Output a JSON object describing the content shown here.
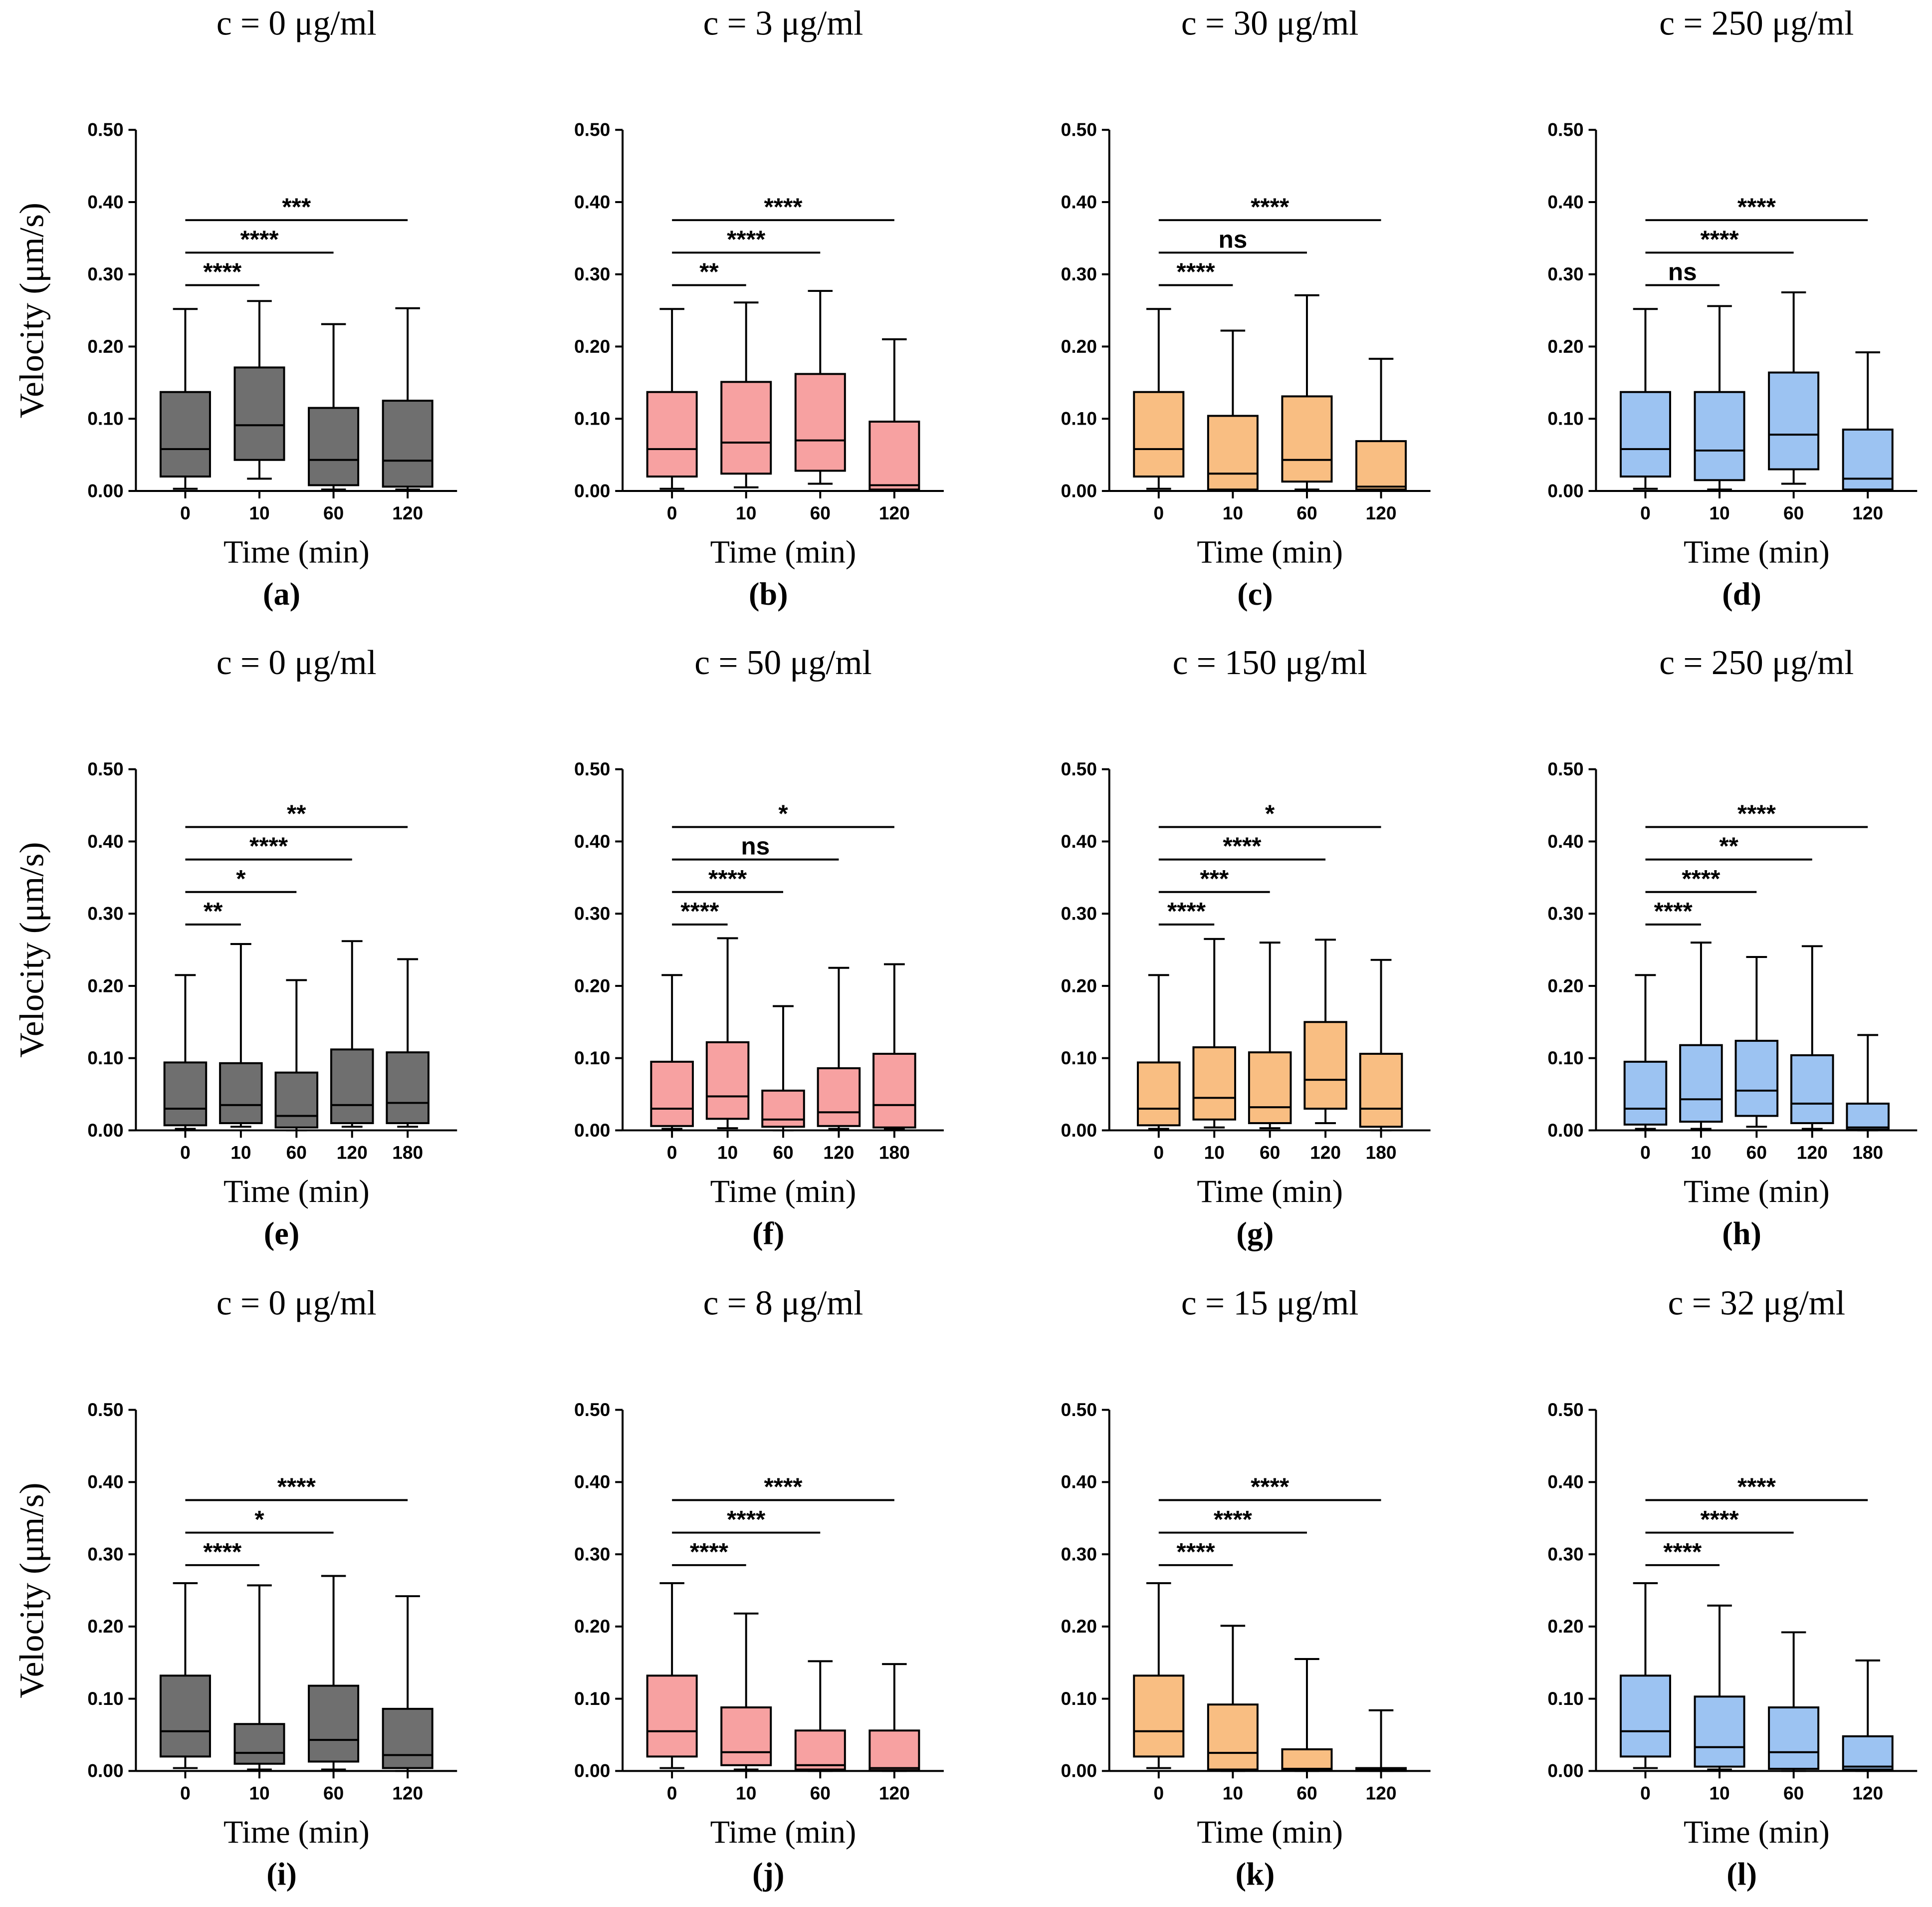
{
  "chart_data": [
    {
      "type": "box",
      "title": "c = 0 μg/ml",
      "label": "(a)",
      "y_label": "Velocity (μm/s)",
      "x_label": "Time (min)",
      "color": "#6f6f6f",
      "categories": [
        "0",
        "10",
        "60",
        "120"
      ],
      "values": [
        [
          0.003,
          0.02,
          0.058,
          0.137,
          0.252
        ],
        [
          0.017,
          0.043,
          0.091,
          0.171,
          0.263
        ],
        [
          0.002,
          0.008,
          0.043,
          0.115,
          0.231
        ],
        [
          0.002,
          0.006,
          0.042,
          0.125,
          0.253
        ]
      ],
      "ylim": [
        0,
        0.5
      ],
      "yticks": [
        {
          "value": 0,
          "label": "0.00"
        },
        {
          "value": 0.1,
          "label": "0.10"
        },
        {
          "value": 0.2,
          "label": "0.20"
        },
        {
          "value": 0.3,
          "label": "0.30"
        },
        {
          "value": 0.4,
          "label": "0.40"
        },
        {
          "value": 0.5,
          "label": "0.50"
        }
      ],
      "brackets": [
        {
          "from": "0",
          "to": "10",
          "label": "****"
        },
        {
          "from": "0",
          "to": "60",
          "label": "****"
        },
        {
          "from": "0",
          "to": "120",
          "label": "***"
        }
      ]
    },
    {
      "type": "box",
      "title": "c = 3 μg/ml",
      "label": "(b)",
      "x_label": "Time (min)",
      "color": "#f7a1a1",
      "categories": [
        "0",
        "10",
        "60",
        "120"
      ],
      "values": [
        [
          0.003,
          0.02,
          0.058,
          0.137,
          0.252
        ],
        [
          0.005,
          0.024,
          0.067,
          0.151,
          0.261
        ],
        [
          0.01,
          0.028,
          0.07,
          0.162,
          0.277
        ],
        [
          0,
          0.002,
          0.008,
          0.096,
          0.21
        ]
      ],
      "ylim": [
        0,
        0.5
      ],
      "yticks": [
        {
          "value": 0,
          "label": "0.00"
        },
        {
          "value": 0.1,
          "label": "0.10"
        },
        {
          "value": 0.2,
          "label": "0.20"
        },
        {
          "value": 0.3,
          "label": "0.30"
        },
        {
          "value": 0.4,
          "label": "0.40"
        },
        {
          "value": 0.5,
          "label": "0.50"
        }
      ],
      "brackets": [
        {
          "from": "0",
          "to": "10",
          "label": "**"
        },
        {
          "from": "0",
          "to": "60",
          "label": "****"
        },
        {
          "from": "0",
          "to": "120",
          "label": "****"
        }
      ]
    },
    {
      "type": "box",
      "title": "c = 30 μg/ml",
      "label": "(c)",
      "x_label": "Time (min)",
      "color": "#f9be82",
      "categories": [
        "0",
        "10",
        "60",
        "120"
      ],
      "values": [
        [
          0.003,
          0.02,
          0.058,
          0.137,
          0.252
        ],
        [
          0,
          0.002,
          0.024,
          0.104,
          0.222
        ],
        [
          0.002,
          0.013,
          0.043,
          0.131,
          0.271
        ],
        [
          0,
          0.002,
          0.006,
          0.069,
          0.183
        ]
      ],
      "ylim": [
        0,
        0.5
      ],
      "yticks": [
        {
          "value": 0,
          "label": "0.00"
        },
        {
          "value": 0.1,
          "label": "0.10"
        },
        {
          "value": 0.2,
          "label": "0.20"
        },
        {
          "value": 0.3,
          "label": "0.30"
        },
        {
          "value": 0.4,
          "label": "0.40"
        },
        {
          "value": 0.5,
          "label": "0.50"
        }
      ],
      "brackets": [
        {
          "from": "0",
          "to": "10",
          "label": "****"
        },
        {
          "from": "0",
          "to": "60",
          "label": "ns"
        },
        {
          "from": "0",
          "to": "120",
          "label": "****"
        }
      ]
    },
    {
      "type": "box",
      "title": "c = 250 μg/ml",
      "label": "(d)",
      "x_label": "Time (min)",
      "color": "#9cc3f2",
      "categories": [
        "0",
        "10",
        "60",
        "120"
      ],
      "values": [
        [
          0.003,
          0.02,
          0.058,
          0.137,
          0.252
        ],
        [
          0.002,
          0.015,
          0.056,
          0.137,
          0.256
        ],
        [
          0.01,
          0.03,
          0.078,
          0.164,
          0.275
        ],
        [
          0,
          0.002,
          0.017,
          0.085,
          0.192
        ]
      ],
      "ylim": [
        0,
        0.5
      ],
      "yticks": [
        {
          "value": 0,
          "label": "0.00"
        },
        {
          "value": 0.1,
          "label": "0.10"
        },
        {
          "value": 0.2,
          "label": "0.20"
        },
        {
          "value": 0.3,
          "label": "0.30"
        },
        {
          "value": 0.4,
          "label": "0.40"
        },
        {
          "value": 0.5,
          "label": "0.50"
        }
      ],
      "brackets": [
        {
          "from": "0",
          "to": "10",
          "label": "ns"
        },
        {
          "from": "0",
          "to": "60",
          "label": "****"
        },
        {
          "from": "0",
          "to": "120",
          "label": "****"
        }
      ]
    },
    {
      "type": "box",
      "title": "c = 0 μg/ml",
      "label": "(e)",
      "y_label": "Velocity (μm/s)",
      "x_label": "Time (min)",
      "color": "#6f6f6f",
      "categories": [
        "0",
        "10",
        "60",
        "120",
        "180"
      ],
      "values": [
        [
          0.002,
          0.007,
          0.03,
          0.094,
          0.215
        ],
        [
          0.005,
          0.01,
          0.035,
          0.093,
          0.258
        ],
        [
          0,
          0.004,
          0.02,
          0.08,
          0.208
        ],
        [
          0.005,
          0.01,
          0.035,
          0.112,
          0.262
        ],
        [
          0.005,
          0.01,
          0.038,
          0.108,
          0.237
        ]
      ],
      "ylim": [
        0,
        0.5
      ],
      "yticks": [
        {
          "value": 0,
          "label": "0.00"
        },
        {
          "value": 0.1,
          "label": "0.10"
        },
        {
          "value": 0.2,
          "label": "0.20"
        },
        {
          "value": 0.3,
          "label": "0.30"
        },
        {
          "value": 0.4,
          "label": "0.40"
        },
        {
          "value": 0.5,
          "label": "0.50"
        }
      ],
      "brackets": [
        {
          "from": "0",
          "to": "10",
          "label": "**"
        },
        {
          "from": "0",
          "to": "60",
          "label": "*"
        },
        {
          "from": "0",
          "to": "120",
          "label": "****"
        },
        {
          "from": "0",
          "to": "180",
          "label": "**"
        }
      ]
    },
    {
      "type": "box",
      "title": "c = 50 μg/ml",
      "label": "(f)",
      "x_label": "Time (min)",
      "color": "#f7a1a1",
      "categories": [
        "0",
        "10",
        "60",
        "120",
        "180"
      ],
      "values": [
        [
          0.002,
          0.006,
          0.03,
          0.095,
          0.215
        ],
        [
          0.003,
          0.016,
          0.047,
          0.122,
          0.266
        ],
        [
          0,
          0.005,
          0.015,
          0.055,
          0.172
        ],
        [
          0.002,
          0.006,
          0.025,
          0.086,
          0.225
        ],
        [
          0.002,
          0.004,
          0.035,
          0.106,
          0.23
        ]
      ],
      "ylim": [
        0,
        0.5
      ],
      "yticks": [
        {
          "value": 0,
          "label": "0.00"
        },
        {
          "value": 0.1,
          "label": "0.10"
        },
        {
          "value": 0.2,
          "label": "0.20"
        },
        {
          "value": 0.3,
          "label": "0.30"
        },
        {
          "value": 0.4,
          "label": "0.40"
        },
        {
          "value": 0.5,
          "label": "0.50"
        }
      ],
      "brackets": [
        {
          "from": "0",
          "to": "10",
          "label": "****"
        },
        {
          "from": "0",
          "to": "60",
          "label": "****"
        },
        {
          "from": "0",
          "to": "120",
          "label": "ns"
        },
        {
          "from": "0",
          "to": "180",
          "label": "*"
        }
      ]
    },
    {
      "type": "box",
      "title": "c = 150 μg/ml",
      "label": "(g)",
      "x_label": "Time (min)",
      "color": "#f9be82",
      "categories": [
        "0",
        "10",
        "60",
        "120",
        "180"
      ],
      "values": [
        [
          0.002,
          0.007,
          0.03,
          0.094,
          0.215
        ],
        [
          0.004,
          0.015,
          0.045,
          0.115,
          0.265
        ],
        [
          0.003,
          0.01,
          0.032,
          0.108,
          0.26
        ],
        [
          0.01,
          0.03,
          0.07,
          0.15,
          0.264
        ],
        [
          0,
          0.005,
          0.03,
          0.106,
          0.236
        ]
      ],
      "ylim": [
        0,
        0.5
      ],
      "yticks": [
        {
          "value": 0,
          "label": "0.00"
        },
        {
          "value": 0.1,
          "label": "0.10"
        },
        {
          "value": 0.2,
          "label": "0.20"
        },
        {
          "value": 0.3,
          "label": "0.30"
        },
        {
          "value": 0.4,
          "label": "0.40"
        },
        {
          "value": 0.5,
          "label": "0.50"
        }
      ],
      "brackets": [
        {
          "from": "0",
          "to": "10",
          "label": "****"
        },
        {
          "from": "0",
          "to": "60",
          "label": "***"
        },
        {
          "from": "0",
          "to": "120",
          "label": "****"
        },
        {
          "from": "0",
          "to": "180",
          "label": "*"
        }
      ]
    },
    {
      "type": "box",
      "title": "c = 250 μg/ml",
      "label": "(h)",
      "x_label": "Time (min)",
      "color": "#9cc3f2",
      "categories": [
        "0",
        "10",
        "60",
        "120",
        "180"
      ],
      "values": [
        [
          0.002,
          0.008,
          0.03,
          0.095,
          0.215
        ],
        [
          0.002,
          0.012,
          0.043,
          0.118,
          0.26
        ],
        [
          0.005,
          0.02,
          0.055,
          0.124,
          0.24
        ],
        [
          0.002,
          0.01,
          0.037,
          0.104,
          0.255
        ],
        [
          0,
          0.001,
          0.004,
          0.037,
          0.132
        ]
      ],
      "ylim": [
        0,
        0.5
      ],
      "yticks": [
        {
          "value": 0,
          "label": "0.00"
        },
        {
          "value": 0.1,
          "label": "0.10"
        },
        {
          "value": 0.2,
          "label": "0.20"
        },
        {
          "value": 0.3,
          "label": "0.30"
        },
        {
          "value": 0.4,
          "label": "0.40"
        },
        {
          "value": 0.5,
          "label": "0.50"
        }
      ],
      "brackets": [
        {
          "from": "0",
          "to": "10",
          "label": "****"
        },
        {
          "from": "0",
          "to": "60",
          "label": "****"
        },
        {
          "from": "0",
          "to": "120",
          "label": "**"
        },
        {
          "from": "0",
          "to": "180",
          "label": "****"
        }
      ]
    },
    {
      "type": "box",
      "title": "c = 0 μg/ml",
      "label": "(i)",
      "y_label": "Velocity (μm/s)",
      "x_label": "Time (min)",
      "color": "#6f6f6f",
      "categories": [
        "0",
        "10",
        "60",
        "120"
      ],
      "values": [
        [
          0.004,
          0.02,
          0.055,
          0.132,
          0.26
        ],
        [
          0.002,
          0.01,
          0.025,
          0.065,
          0.257
        ],
        [
          0.002,
          0.013,
          0.043,
          0.118,
          0.27
        ],
        [
          0,
          0.004,
          0.022,
          0.086,
          0.242
        ]
      ],
      "ylim": [
        0,
        0.5
      ],
      "yticks": [
        {
          "value": 0,
          "label": "0.00"
        },
        {
          "value": 0.1,
          "label": "0.10"
        },
        {
          "value": 0.2,
          "label": "0.20"
        },
        {
          "value": 0.3,
          "label": "0.30"
        },
        {
          "value": 0.4,
          "label": "0.40"
        },
        {
          "value": 0.5,
          "label": "0.50"
        }
      ],
      "brackets": [
        {
          "from": "0",
          "to": "10",
          "label": "****"
        },
        {
          "from": "0",
          "to": "60",
          "label": "*"
        },
        {
          "from": "0",
          "to": "120",
          "label": "****"
        }
      ]
    },
    {
      "type": "box",
      "title": "c = 8 μg/ml",
      "label": "(j)",
      "x_label": "Time (min)",
      "color": "#f7a1a1",
      "categories": [
        "0",
        "10",
        "60",
        "120"
      ],
      "values": [
        [
          0.004,
          0.02,
          0.055,
          0.132,
          0.26
        ],
        [
          0.002,
          0.008,
          0.026,
          0.088,
          0.218
        ],
        [
          0,
          0.002,
          0.008,
          0.056,
          0.152
        ],
        [
          0,
          0.001,
          0.004,
          0.056,
          0.148
        ]
      ],
      "ylim": [
        0,
        0.5
      ],
      "yticks": [
        {
          "value": 0,
          "label": "0.00"
        },
        {
          "value": 0.1,
          "label": "0.10"
        },
        {
          "value": 0.2,
          "label": "0.20"
        },
        {
          "value": 0.3,
          "label": "0.30"
        },
        {
          "value": 0.4,
          "label": "0.40"
        },
        {
          "value": 0.5,
          "label": "0.50"
        }
      ],
      "brackets": [
        {
          "from": "0",
          "to": "10",
          "label": "****"
        },
        {
          "from": "0",
          "to": "60",
          "label": "****"
        },
        {
          "from": "0",
          "to": "120",
          "label": "****"
        }
      ]
    },
    {
      "type": "box",
      "title": "c = 15 μg/ml",
      "label": "(k)",
      "x_label": "Time (min)",
      "color": "#f9be82",
      "categories": [
        "0",
        "10",
        "60",
        "120"
      ],
      "values": [
        [
          0.004,
          0.02,
          0.055,
          0.132,
          0.26
        ],
        [
          0,
          0.002,
          0.025,
          0.092,
          0.201
        ],
        [
          0,
          0.001,
          0.003,
          0.03,
          0.155
        ],
        [
          0,
          0,
          0.002,
          0.004,
          0.084
        ]
      ],
      "ylim": [
        0,
        0.5
      ],
      "yticks": [
        {
          "value": 0,
          "label": "0.00"
        },
        {
          "value": 0.1,
          "label": "0.10"
        },
        {
          "value": 0.2,
          "label": "0.20"
        },
        {
          "value": 0.3,
          "label": "0.30"
        },
        {
          "value": 0.4,
          "label": "0.40"
        },
        {
          "value": 0.5,
          "label": "0.50"
        }
      ],
      "brackets": [
        {
          "from": "0",
          "to": "10",
          "label": "****"
        },
        {
          "from": "0",
          "to": "60",
          "label": "****"
        },
        {
          "from": "0",
          "to": "120",
          "label": "****"
        }
      ]
    },
    {
      "type": "box",
      "title": "c = 32 μg/ml",
      "label": "(l)",
      "x_label": "Time (min)",
      "color": "#9cc3f2",
      "categories": [
        "0",
        "10",
        "60",
        "120"
      ],
      "values": [
        [
          0.004,
          0.02,
          0.055,
          0.132,
          0.26
        ],
        [
          0.002,
          0.006,
          0.033,
          0.103,
          0.229
        ],
        [
          0,
          0.003,
          0.026,
          0.088,
          0.192
        ],
        [
          0,
          0.002,
          0.006,
          0.048,
          0.153
        ]
      ],
      "ylim": [
        0,
        0.5
      ],
      "yticks": [
        {
          "value": 0,
          "label": "0.00"
        },
        {
          "value": 0.1,
          "label": "0.10"
        },
        {
          "value": 0.2,
          "label": "0.20"
        },
        {
          "value": 0.3,
          "label": "0.30"
        },
        {
          "value": 0.4,
          "label": "0.40"
        },
        {
          "value": 0.5,
          "label": "0.50"
        }
      ],
      "brackets": [
        {
          "from": "0",
          "to": "10",
          "label": "****"
        },
        {
          "from": "0",
          "to": "60",
          "label": "****"
        },
        {
          "from": "0",
          "to": "120",
          "label": "****"
        }
      ]
    }
  ]
}
